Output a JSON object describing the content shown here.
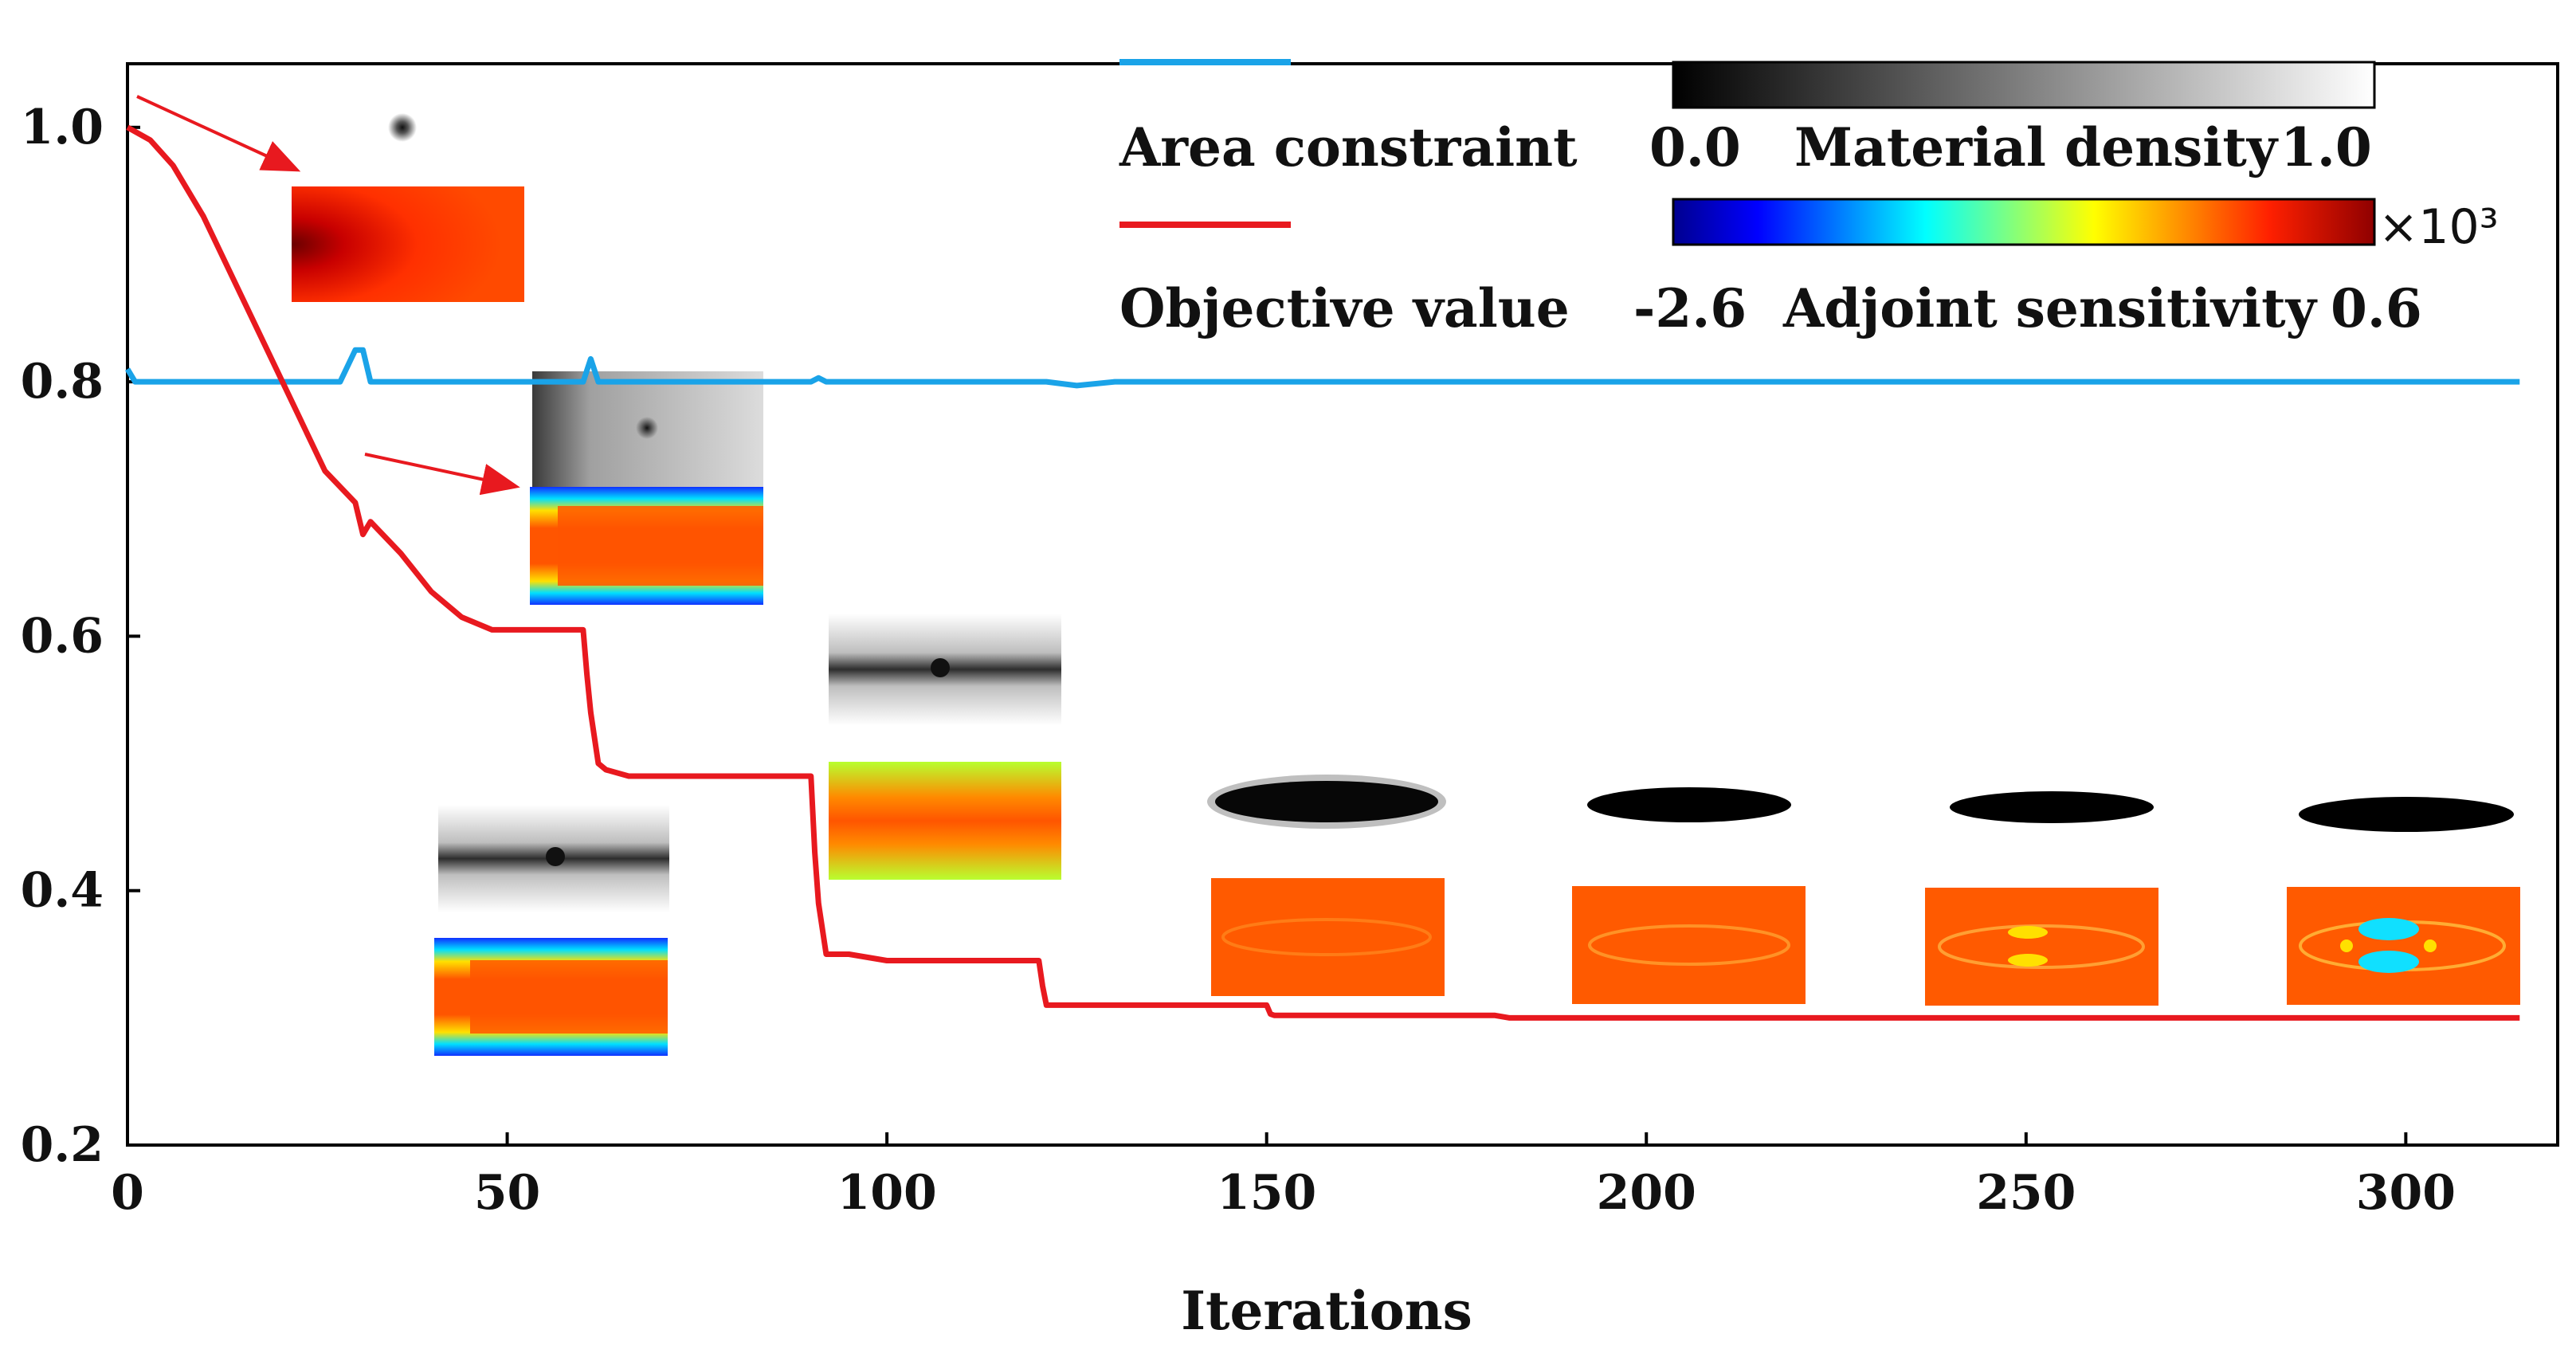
{
  "chart_data": {
    "type": "line",
    "xlabel": "Iterations",
    "ylabel": "",
    "xlim": [
      0,
      320
    ],
    "ylim": [
      0.2,
      1.05
    ],
    "xticks": [
      0,
      50,
      100,
      150,
      200,
      250,
      300
    ],
    "yticks": [
      0.2,
      0.4,
      0.6,
      0.8,
      1.0
    ],
    "xtick_labels": [
      "0",
      "50",
      "100",
      "150",
      "200",
      "250",
      "300"
    ],
    "ytick_labels": [
      "0.2",
      "0.4",
      "0.6",
      "0.8",
      "1.0"
    ],
    "legend_placement": "top-center",
    "series": [
      {
        "name": "Area constraint",
        "color": "#1aa3e8",
        "x": [
          0,
          1,
          2,
          28,
          30,
          31,
          32,
          60,
          61,
          62,
          63,
          90,
          91,
          92,
          121,
          125,
          130,
          315
        ],
        "y": [
          0.81,
          0.8,
          0.8,
          0.8,
          0.825,
          0.825,
          0.8,
          0.8,
          0.818,
          0.8,
          0.8,
          0.8,
          0.803,
          0.8,
          0.8,
          0.797,
          0.8,
          0.8
        ]
      },
      {
        "name": "Objective value",
        "color": "#e8191f",
        "x": [
          0,
          3,
          6,
          10,
          14,
          18,
          22,
          26,
          30,
          31,
          32,
          36,
          40,
          44,
          48,
          60,
          60.5,
          61,
          62,
          63,
          66,
          90,
          90.5,
          91,
          92,
          95,
          100,
          120,
          120.5,
          121,
          122,
          150,
          150.5,
          151,
          152,
          180,
          182,
          315
        ],
        "y": [
          1.0,
          0.99,
          0.97,
          0.93,
          0.88,
          0.83,
          0.78,
          0.73,
          0.705,
          0.68,
          0.69,
          0.665,
          0.635,
          0.615,
          0.605,
          0.605,
          0.57,
          0.54,
          0.5,
          0.495,
          0.49,
          0.49,
          0.43,
          0.39,
          0.35,
          0.35,
          0.345,
          0.345,
          0.325,
          0.31,
          0.31,
          0.31,
          0.303,
          0.302,
          0.302,
          0.302,
          0.3,
          0.3
        ]
      }
    ]
  },
  "legend": {
    "area_label": "Area constraint",
    "objective_label": "Objective value"
  },
  "colorbars": {
    "density": {
      "label": "Material density",
      "min": "0.0",
      "max": "1.0"
    },
    "sensitivity": {
      "label": "Adjoint sensitivity",
      "min": "-2.6",
      "max": "0.6",
      "multiplier": "×10³"
    }
  },
  "colors": {
    "area_line": "#1aa3e8",
    "objective_line": "#e8191f",
    "arrow": "#e8191f"
  }
}
